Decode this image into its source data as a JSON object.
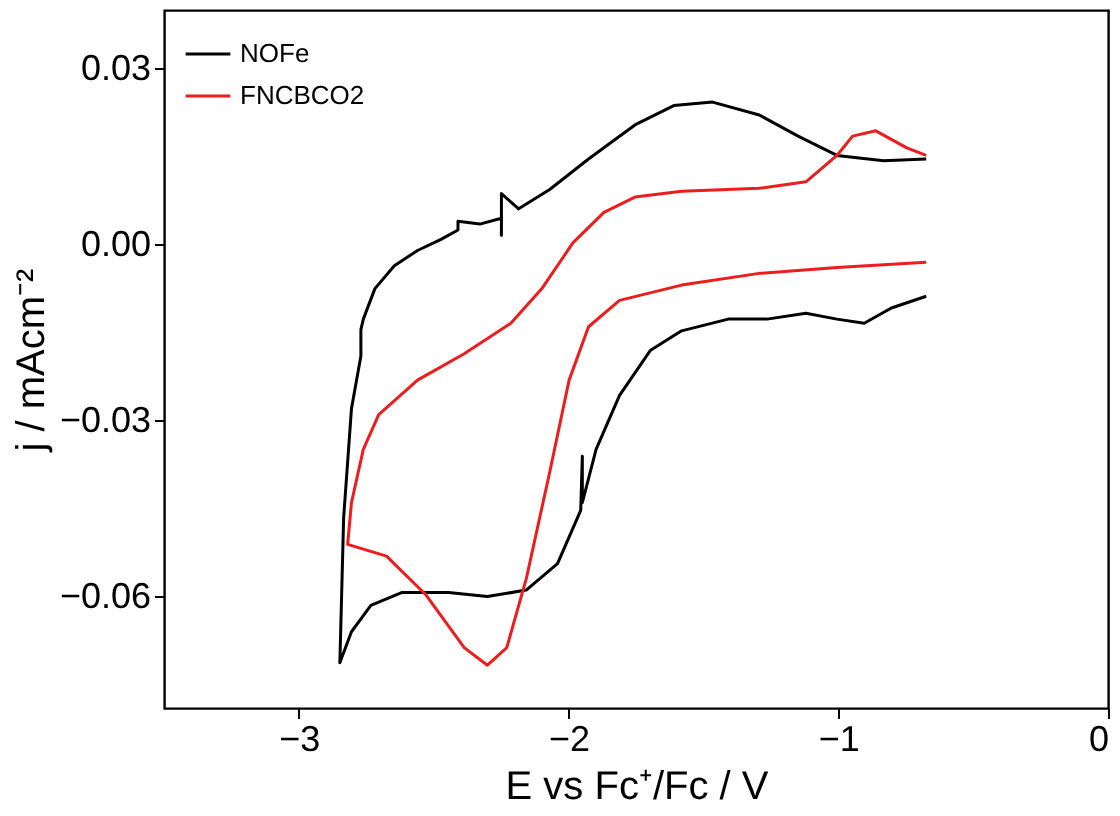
{
  "chart_data": {
    "type": "line",
    "xlabel": "E vs Fc⁺/Fc / V",
    "ylabel": "j / mAcm⁻²",
    "xlim": [
      -3.5,
      0
    ],
    "xticks": [
      -3,
      -2,
      -1,
      0
    ],
    "ylim": [
      -0.079,
      0.04
    ],
    "yticks": [
      -0.06,
      -0.03,
      {
        "value": 0,
        "label": "0.00"
      },
      0.03
    ],
    "grid": false,
    "legend": "top left",
    "marker": "none",
    "line_style": "solid",
    "series": [
      {
        "name": "NOFe",
        "color": "#000000",
        "x": [
          -0.674,
          -0.832,
          -1.005,
          -1.149,
          -1.293,
          -1.466,
          -1.61,
          -1.754,
          -1.926,
          -2.07,
          -2.185,
          -2.249,
          -2.249,
          -2.249,
          -2.329,
          -2.41,
          -2.41,
          -2.473,
          -2.56,
          -2.646,
          -2.718,
          -2.761,
          -2.77,
          -2.77,
          -2.805,
          -2.834,
          -2.848,
          -2.805,
          -2.733,
          -2.617,
          -2.445,
          -2.301,
          -2.157,
          -2.041,
          -1.955,
          -1.949,
          -1.949,
          -1.898,
          -1.811,
          -1.696,
          -1.581,
          -1.408,
          -1.264,
          -1.12,
          -1.005,
          -0.904,
          -0.803,
          -0.674
        ],
        "values": [
          0.0146,
          0.0143,
          0.0152,
          0.0185,
          0.0221,
          0.0243,
          0.0237,
          0.0204,
          0.0146,
          0.0094,
          0.0061,
          0.0087,
          0.0016,
          0.0045,
          0.0035,
          0.004,
          0.0025,
          0.0009,
          -0.001,
          -0.0036,
          -0.0075,
          -0.0127,
          -0.0145,
          -0.019,
          -0.028,
          -0.0466,
          -0.0713,
          -0.066,
          -0.0615,
          -0.0593,
          -0.0593,
          -0.06,
          -0.0589,
          -0.0544,
          -0.0453,
          -0.0361,
          -0.044,
          -0.0349,
          -0.0257,
          -0.018,
          -0.0147,
          -0.0127,
          -0.0127,
          -0.0117,
          -0.0127,
          -0.0134,
          -0.0108,
          -0.0088
        ]
      },
      {
        "name": "FNCBCO2",
        "color": "#ee1c1c",
        "x": [
          -0.674,
          -0.746,
          -0.861,
          -0.947,
          -1.005,
          -1.12,
          -1.293,
          -1.581,
          -1.754,
          -1.869,
          -1.984,
          -2.099,
          -2.214,
          -2.387,
          -2.56,
          -2.704,
          -2.761,
          -2.805,
          -2.819,
          -2.675,
          -2.531,
          -2.387,
          -2.301,
          -2.229,
          -2.157,
          -2.07,
          -1.998,
          -1.926,
          -1.811,
          -1.581,
          -1.293,
          -1.005,
          -0.674
        ],
        "values": [
          0.0152,
          0.0165,
          0.0194,
          0.0185,
          0.0152,
          0.0107,
          0.0096,
          0.0091,
          0.0081,
          0.0055,
          0.0003,
          -0.0075,
          -0.0134,
          -0.0186,
          -0.0231,
          -0.029,
          -0.0349,
          -0.044,
          -0.0511,
          -0.0531,
          -0.0596,
          -0.0687,
          -0.0717,
          -0.0687,
          -0.057,
          -0.0388,
          -0.0231,
          -0.014,
          -0.0095,
          -0.0069,
          -0.0049,
          -0.0039,
          -0.003
        ]
      }
    ]
  }
}
